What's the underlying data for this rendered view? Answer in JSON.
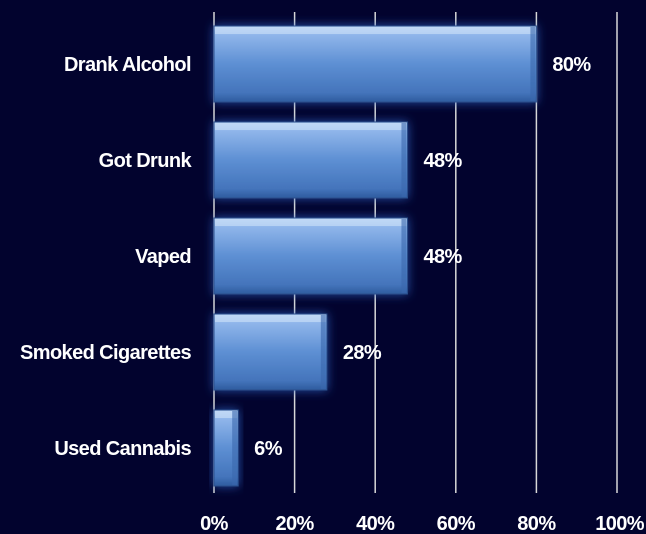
{
  "chart_data": {
    "type": "bar",
    "orientation": "horizontal",
    "categories": [
      "Drank Alcohol",
      "Got Drunk",
      "Vaped",
      "Smoked Cigarettes",
      "Used Cannabis"
    ],
    "values": [
      80,
      48,
      48,
      28,
      6
    ],
    "value_labels": [
      "80%",
      "48%",
      "48%",
      "28%",
      "6%"
    ],
    "xlim": [
      0,
      100
    ],
    "x_ticks": [
      "0%",
      "20%",
      "40%",
      "60%",
      "80%",
      "100%"
    ],
    "title": "",
    "xlabel": "",
    "ylabel": "",
    "grid": "vertical",
    "legend": "none",
    "colors": {
      "background": "#02032e",
      "bar_fill": "#5d8fd3",
      "bar_highlight": "#9cc0ef",
      "bar_shadow": "#2e5b9e",
      "glow": "#2f67c8",
      "gridline": "#d8d8d8",
      "text": "#ffffff"
    }
  }
}
